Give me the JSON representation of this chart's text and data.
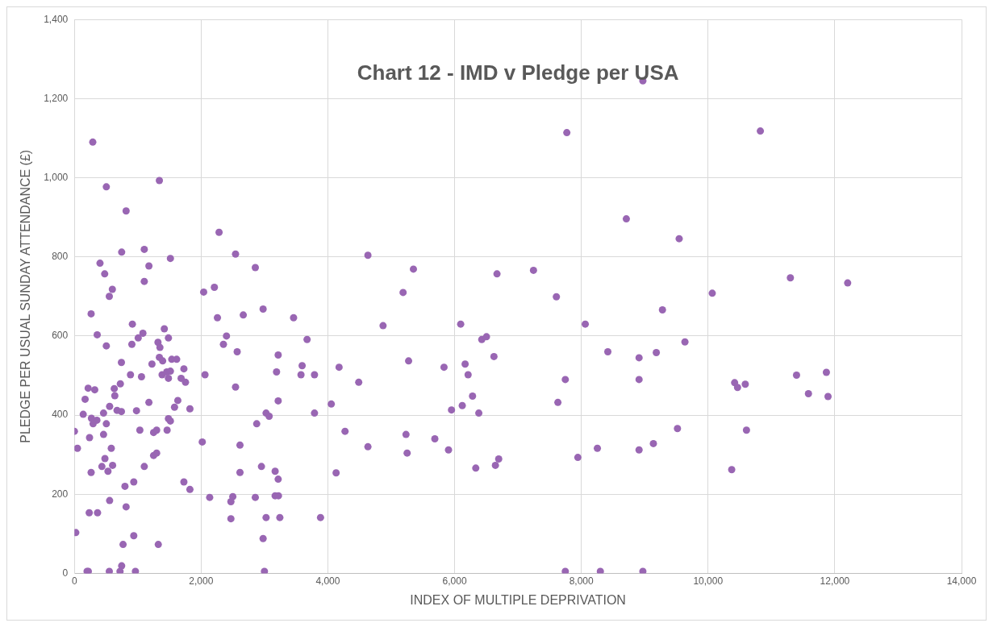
{
  "chart_data": {
    "type": "scatter",
    "title": "Chart 12 - IMD v Pledge per USA",
    "xlabel": "INDEX OF MULTIPLE DEPRIVATION",
    "ylabel": "PLEDGE PER USUAL SUNDAY ATTENDANCE (£)",
    "xlim": [
      0,
      14000
    ],
    "xticks": [
      0,
      {
        "value": 2000,
        "label": "2,000"
      },
      {
        "value": 4000,
        "label": "4,000"
      },
      {
        "value": 6000,
        "label": "6,000"
      },
      {
        "value": 8000,
        "label": "8,000"
      },
      {
        "value": 10000,
        "label": "10,000"
      },
      {
        "value": 12000,
        "label": "12,000"
      },
      {
        "value": 14000,
        "label": "14,000"
      }
    ],
    "ylim": [
      0,
      1400
    ],
    "yticks": [
      0,
      200,
      400,
      600,
      800,
      {
        "value": 1000,
        "label": "1,000"
      },
      {
        "value": 1200,
        "label": "1,200"
      },
      {
        "value": 1400,
        "label": "1,400"
      }
    ],
    "grid": true,
    "legend": false,
    "marker": "circle",
    "series": [
      {
        "color": "#9966b3",
        "x": [
          290,
          504,
          1341,
          816,
          2283,
          746,
          1103,
          1515,
          2543,
          404,
          1176,
          2855,
          478,
          1103,
          2040,
          2209,
          599,
          551,
          264,
          2978,
          2665,
          2257,
          3459,
          915,
          1419,
          360,
          1081,
          1007,
          1484,
          2400,
          3672,
          504,
          907,
          1319,
          1350,
          2352,
          2569,
          3216,
          742,
          1224,
          1341,
          1393,
          1536,
          1614,
          1728,
          2061,
          885,
          1059,
          1384,
          1458,
          1515,
          1484,
          1684,
          1753,
          3190,
          3594,
          3576,
          3789,
          2543,
          217,
          321,
          629,
          725,
          638,
          169,
          556,
          673,
          742,
          980,
          1176,
          1632,
          1580,
          1823,
          3216,
          3025,
          3073,
          3789,
          460,
          139,
          269,
          355,
          295,
          504,
          1484,
          1515,
          0,
          1033,
          1250,
          1298,
          1463,
          2877,
          460,
          239,
          2018,
          2613,
          48,
          582,
          1250,
          1298,
          482,
          434,
          603,
          530,
          264,
          1103,
          2952,
          2613,
          3168,
          3216,
          937,
          798,
          1728,
          1823,
          2135,
          2500,
          2470,
          2855,
          3168,
          3220,
          556,
          816,
          234,
          365,
          2470,
          3025,
          3242,
          3884,
          22,
          937,
          768,
          1324,
          2978,
          746,
          200,
          220,
          551,
          720,
          963,
          2999,
          7771,
          8710,
          4632,
          5350,
          5187,
          6669,
          7245,
          7606,
          4871,
          6096,
          8062,
          6429,
          6503,
          6621,
          5274,
          4177,
          5833,
          6166,
          6213,
          4487,
          8418,
          8911,
          8911,
          7747,
          4054,
          7630,
          6283,
          5951,
          6121,
          6382,
          4271,
          4632,
          5233,
          5251,
          5688,
          5904,
          6696,
          6644,
          6334,
          7945,
          8253,
          8911,
          4130,
          7747,
          8300,
          8971,
          8971,
          10825,
          9544,
          11299,
          12203,
          10066,
          9280,
          9635,
          9183,
          10419,
          10465,
          10587,
          11396,
          11867,
          11584,
          11893,
          9517,
          10606,
          9137,
          10373
        ],
        "values": [
          1090,
          977,
          993,
          916,
          862,
          812,
          819,
          796,
          807,
          784,
          777,
          773,
          757,
          738,
          711,
          723,
          718,
          700,
          656,
          668,
          653,
          646,
          646,
          630,
          618,
          603,
          607,
          595,
          595,
          600,
          591,
          575,
          579,
          584,
          571,
          579,
          560,
          552,
          533,
          529,
          546,
          537,
          541,
          541,
          517,
          502,
          502,
          497,
          502,
          509,
          511,
          493,
          493,
          483,
          509,
          525,
          502,
          502,
          471,
          468,
          464,
          467,
          479,
          449,
          440,
          422,
          412,
          409,
          411,
          432,
          437,
          420,
          416,
          436,
          405,
          397,
          405,
          405,
          402,
          392,
          387,
          378,
          378,
          391,
          385,
          359,
          362,
          356,
          362,
          362,
          378,
          351,
          343,
          332,
          324,
          316,
          316,
          298,
          304,
          290,
          270,
          273,
          258,
          255,
          270,
          270,
          255,
          258,
          238,
          231,
          220,
          231,
          212,
          192,
          194,
          181,
          192,
          196,
          196,
          184,
          168,
          153,
          153,
          138,
          141,
          141,
          141,
          103,
          95,
          73,
          73,
          88,
          19,
          5,
          5,
          5,
          5,
          5,
          5,
          1114,
          896,
          804,
          769,
          710,
          757,
          766,
          699,
          626,
          630,
          630,
          591,
          598,
          548,
          537,
          521,
          521,
          529,
          502,
          483,
          560,
          545,
          490,
          490,
          428,
          432,
          448,
          413,
          424,
          405,
          359,
          320,
          351,
          304,
          340,
          312,
          289,
          273,
          266,
          293,
          316,
          312,
          254,
          5,
          5,
          5,
          1245,
          1118,
          846,
          747,
          734,
          708,
          666,
          585,
          558,
          482,
          470,
          478,
          501,
          508,
          454,
          447,
          366,
          362,
          328,
          262
        ]
      }
    ]
  }
}
